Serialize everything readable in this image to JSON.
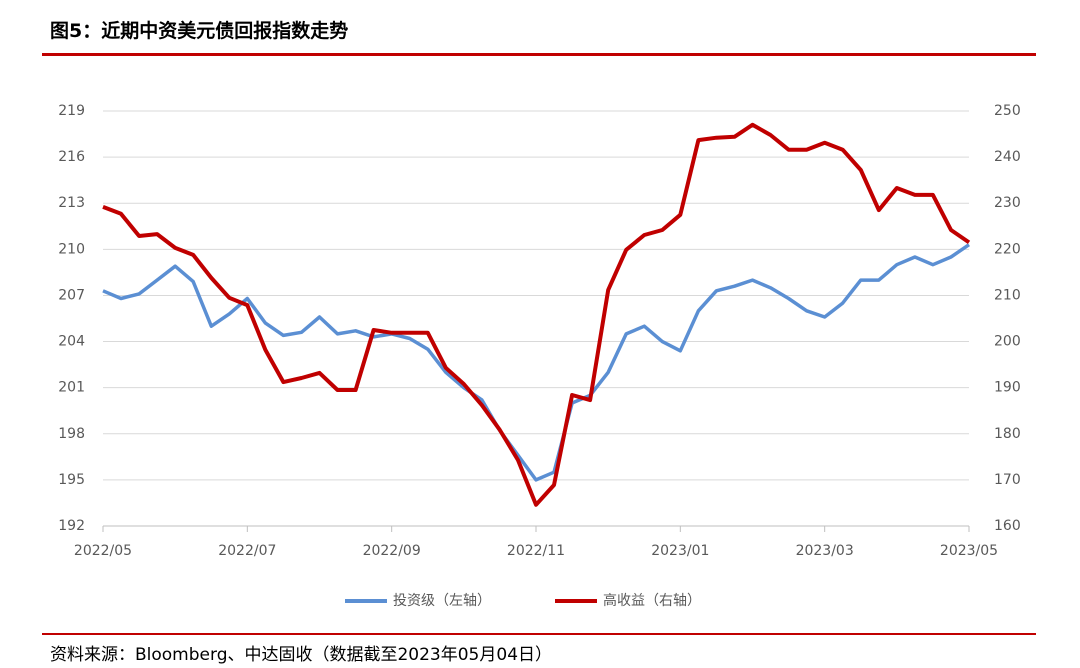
{
  "chart_data": {
    "type": "line",
    "title": "图5：近期中资美元债回报指数走势",
    "source": "资料来源：Bloomberg、中达固收（数据截至2023年05月04日）",
    "categories": [
      "2022/05",
      null,
      null,
      null,
      null,
      null,
      null,
      null,
      "2022/07",
      null,
      null,
      null,
      null,
      null,
      null,
      null,
      "2022/09",
      null,
      null,
      null,
      null,
      null,
      null,
      null,
      "2022/11",
      null,
      null,
      null,
      null,
      null,
      null,
      null,
      "2023/01",
      null,
      null,
      null,
      null,
      null,
      null,
      null,
      "2023/03",
      null,
      null,
      null,
      null,
      null,
      null,
      null,
      "2023/05"
    ],
    "series": [
      {
        "name": "投资级（左轴）",
        "color": "#5b8fd3",
        "axis": "y",
        "values": [
          207.3,
          206.8,
          207.1,
          208.0,
          208.9,
          207.9,
          205.0,
          205.8,
          206.8,
          205.2,
          204.4,
          204.6,
          205.6,
          204.5,
          204.7,
          204.3,
          204.5,
          204.2,
          203.5,
          202.0,
          201.0,
          200.2,
          198.2,
          196.6,
          195.0,
          195.5,
          200.0,
          200.5,
          202.0,
          204.5,
          205.0,
          204.0,
          203.4,
          206.0,
          207.3,
          207.6,
          208.0,
          207.5,
          206.8,
          206.0,
          205.6,
          206.5,
          208.0,
          208.0,
          209.0,
          209.5,
          209.0,
          209.5,
          210.3
        ]
      },
      {
        "name": "高收益（右轴）",
        "color": "#c00000",
        "axis": "y2",
        "values": [
          229.2,
          227.7,
          222.9,
          223.3,
          220.3,
          218.8,
          213.8,
          209.5,
          207.9,
          198.2,
          191.2,
          192.1,
          193.2,
          189.5,
          189.5,
          202.5,
          201.9,
          201.9,
          201.9,
          194.3,
          190.8,
          186.2,
          180.8,
          174.3,
          164.6,
          168.9,
          188.4,
          187.3,
          211.2,
          219.9,
          223.1,
          224.2,
          227.5,
          243.7,
          244.2,
          244.4,
          247.0,
          244.8,
          241.6,
          241.6,
          243.1,
          241.6,
          237.2,
          228.5,
          233.3,
          231.8,
          231.8,
          224.2,
          221.5
        ]
      }
    ],
    "ylim": [
      192,
      219
    ],
    "yticks": [
      192,
      195,
      198,
      201,
      204,
      207,
      210,
      213,
      216,
      219
    ],
    "y2lim": [
      160,
      250
    ],
    "y2ticks": [
      160,
      170,
      180,
      190,
      200,
      210,
      220,
      230,
      240,
      250
    ],
    "grid": true,
    "legend": "bottom"
  }
}
